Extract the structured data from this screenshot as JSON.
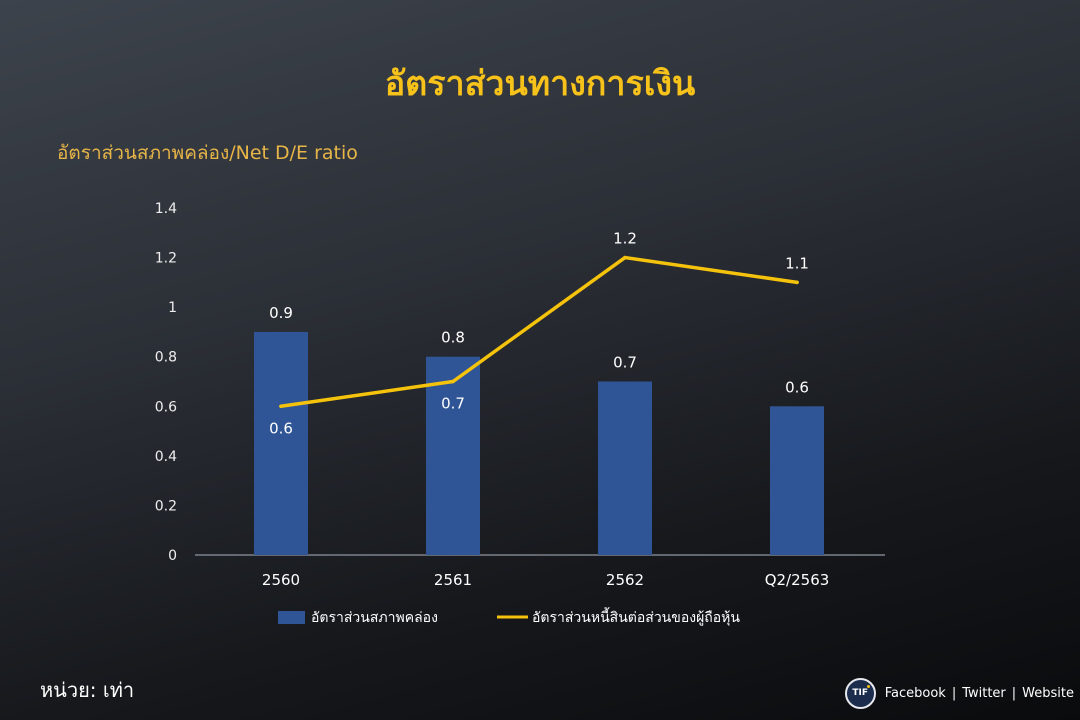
{
  "title": "อัตราส่วนทางการเงิน",
  "unit_note": "หน่วย: เท่า",
  "footer": {
    "logo_text": "TIF",
    "links": [
      "Facebook",
      "Twitter",
      "Website"
    ],
    "separator": "|"
  },
  "colors": {
    "title": "#f7c21a",
    "subtitle": "#e8b547",
    "bar": "#2f5597",
    "line": "#f5c20c",
    "axis": "#7d828b",
    "text": "#ffffff",
    "background": "#2b2f36"
  },
  "chart_data": {
    "type": "bar",
    "title": "อัตราส่วนสภาพคล่อง/Net D/E ratio",
    "categories": [
      "2560",
      "2561",
      "2562",
      "Q2/2563"
    ],
    "series": [
      {
        "name": "อัตราส่วนสภาพคล่อง",
        "type": "bar",
        "values": [
          0.9,
          0.8,
          0.7,
          0.6
        ]
      },
      {
        "name": "อัตราส่วนหนี้สินต่อส่วนของผู้ถือหุ้น",
        "type": "line",
        "values": [
          0.6,
          0.7,
          1.2,
          1.1
        ]
      }
    ],
    "ylim": [
      0,
      1.4
    ],
    "y_ticks": [
      0,
      0.2,
      0.4,
      0.6,
      0.8,
      1,
      1.2,
      1.4
    ],
    "grid": false,
    "legend_position": "bottom",
    "data_labels": true
  }
}
